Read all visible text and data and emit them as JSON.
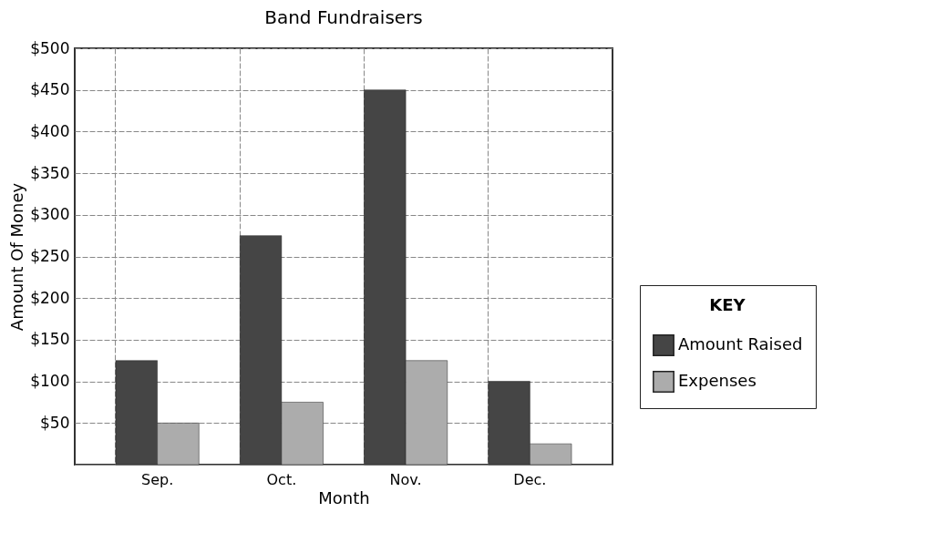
{
  "chart_data": {
    "type": "bar",
    "title": "Band Fundraisers",
    "xlabel": "Month",
    "ylabel": "Amount Of Money",
    "legend_title": "KEY",
    "categories": [
      "Sep.",
      "Oct.",
      "Nov.",
      "Dec."
    ],
    "series": [
      {
        "name": "Amount Raised",
        "color": "#454545",
        "values": [
          125,
          275,
          450,
          100
        ]
      },
      {
        "name": "Expenses",
        "color": "#acacac",
        "values": [
          50,
          75,
          125,
          25
        ]
      }
    ],
    "ylim": [
      0,
      500
    ],
    "yticks": [
      {
        "value": 0,
        "label": null
      },
      {
        "value": 50,
        "label": "$50"
      },
      {
        "value": 100,
        "label": "$100"
      },
      {
        "value": 150,
        "label": "$150"
      },
      {
        "value": 200,
        "label": "$200"
      },
      {
        "value": 250,
        "label": "$250"
      },
      {
        "value": 300,
        "label": "$300"
      },
      {
        "value": 350,
        "label": "$350"
      },
      {
        "value": 400,
        "label": "$400"
      },
      {
        "value": 450,
        "label": "$450"
      },
      {
        "value": 500,
        "label": "$500"
      }
    ],
    "grid": true,
    "legend": "bottom right"
  }
}
